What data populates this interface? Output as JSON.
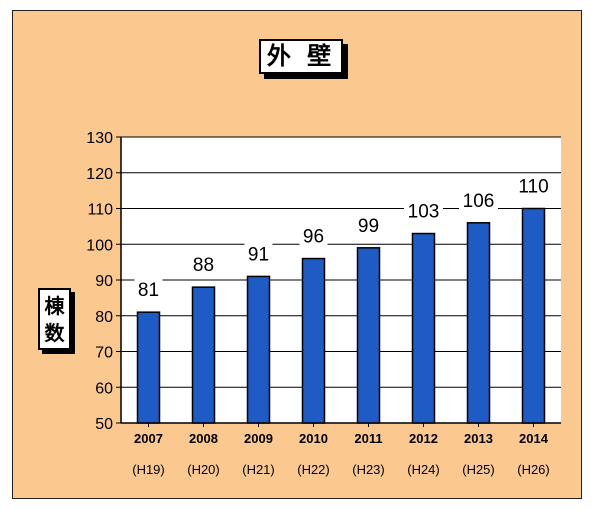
{
  "chart_data": {
    "type": "bar",
    "title": "外 壁",
    "ylabel": "棟\n数",
    "categories": [
      "2007",
      "2008",
      "2009",
      "2010",
      "2011",
      "2012",
      "2013",
      "2014"
    ],
    "categories_sub": [
      "(H19)",
      "(H20)",
      "(H21)",
      "(H22)",
      "(H23)",
      "(H24)",
      "(H25)",
      "(H26)"
    ],
    "values": [
      81,
      88,
      91,
      96,
      99,
      103,
      106,
      110
    ],
    "data_labels": [
      "81",
      "88",
      "91",
      "96",
      "99",
      "103",
      "106",
      "110"
    ],
    "ylim": [
      50,
      130
    ],
    "yticks": [
      50,
      60,
      70,
      80,
      90,
      100,
      110,
      120,
      130
    ],
    "grid": true,
    "colors": {
      "bar": "#1f5bc4",
      "bar_edge": "#000000",
      "background": "#fbc98f",
      "plot": "#ffffff"
    }
  }
}
